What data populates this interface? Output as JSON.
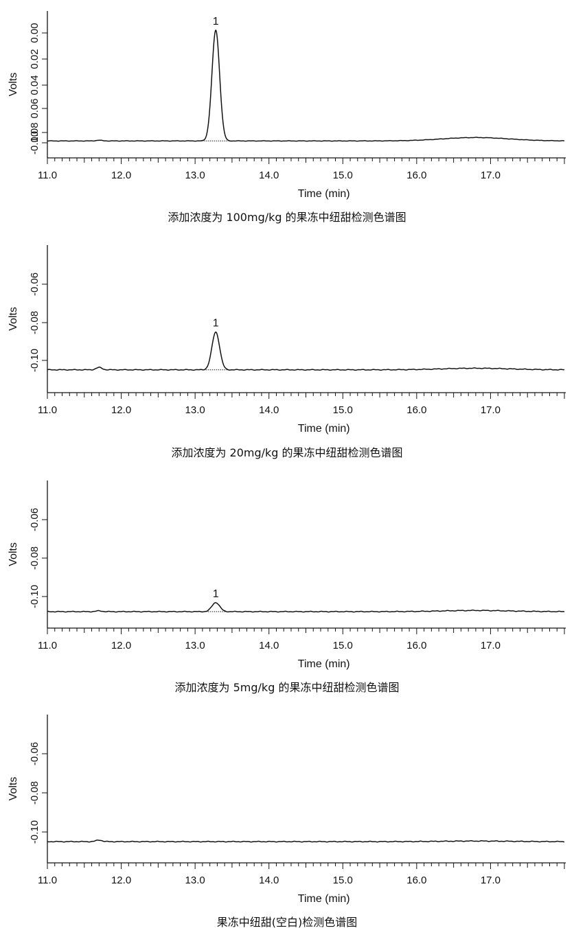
{
  "chart_data": [
    {
      "type": "line",
      "title": "添加浓度为 100mg/kg 的果冻中纽甜检测色谱图",
      "xlabel": "Time (min)",
      "ylabel": "Volts",
      "xlim": [
        11.0,
        18.0
      ],
      "x_ticks": [
        "11.0",
        "12.0",
        "13.0",
        "14.0",
        "15.0",
        "16.0",
        "17.0"
      ],
      "y_ticks": [
        "0.00",
        "0.02",
        "0.04",
        "0.06",
        "0.08",
        "-0.10"
      ],
      "ylim": [
        -0.115,
        0.015
      ],
      "grid": false,
      "baseline": -0.1,
      "peaks": [
        {
          "label": "1",
          "retention_time": 13.28,
          "height": 0.098
        }
      ],
      "features": [
        {
          "time": 11.7,
          "height": 0.0006
        },
        {
          "time": 16.8,
          "height": 0.003
        }
      ]
    },
    {
      "type": "line",
      "title": "添加浓度为 20mg/kg 的果冻中纽甜检测色谱图",
      "xlabel": "Time (min)",
      "ylabel": "Volts",
      "xlim": [
        11.0,
        18.0
      ],
      "x_ticks": [
        "11.0",
        "12.0",
        "13.0",
        "14.0",
        "15.0",
        "16.0",
        "17.0"
      ],
      "y_ticks": [
        "-0.06",
        "-0.08",
        "-0.10"
      ],
      "ylim": [
        -0.1153,
        -0.0391
      ],
      "grid": false,
      "baseline": -0.1035,
      "peaks": [
        {
          "label": "1",
          "retention_time": 13.28,
          "height": 0.0195
        }
      ],
      "features": [
        {
          "time": 11.7,
          "height": 0.0012
        },
        {
          "time": 16.8,
          "height": 0.0008
        }
      ]
    },
    {
      "type": "line",
      "title": "添加浓度为 5mg/kg 的果冻中纽甜检测色谱图",
      "xlabel": "Time (min)",
      "ylabel": "Volts",
      "xlim": [
        11.0,
        18.0
      ],
      "x_ticks": [
        "11.0",
        "12.0",
        "13.0",
        "14.0",
        "15.0",
        "16.0",
        "17.0"
      ],
      "y_ticks": [
        "-0.06",
        "-0.08",
        "-0.10"
      ],
      "ylim": [
        -0.114,
        -0.0378
      ],
      "grid": false,
      "baseline": -0.1055,
      "peaks": [
        {
          "label": "1",
          "retention_time": 13.28,
          "height": 0.0047
        }
      ],
      "features": [
        {
          "time": 11.7,
          "height": 0.0004
        },
        {
          "time": 16.8,
          "height": 0.0006
        }
      ]
    },
    {
      "type": "line",
      "title": "果冻中纽甜(空白)检测色谱图",
      "xlabel": "Time (min)",
      "ylabel": "Volts",
      "xlim": [
        11.0,
        18.0
      ],
      "x_ticks": [
        "11.0",
        "12.0",
        "13.0",
        "14.0",
        "15.0",
        "16.0",
        "17.0"
      ],
      "y_ticks": [
        "-0.06",
        "-0.08",
        "-0.10"
      ],
      "ylim": [
        -0.114,
        -0.0372
      ],
      "grid": false,
      "baseline": -0.103,
      "peaks": [],
      "features": [
        {
          "time": 11.7,
          "height": 0.0008
        },
        {
          "time": 16.8,
          "height": 0.0003
        }
      ]
    }
  ]
}
